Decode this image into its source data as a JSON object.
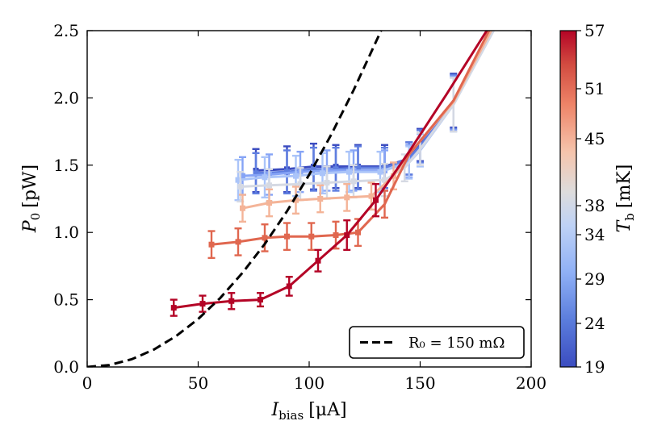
{
  "chart_data": {
    "type": "line",
    "xlabel_main": "I",
    "xlabel_sub": "bias",
    "xlabel_unit": "[μA]",
    "ylabel_main": "P",
    "ylabel_sub": "0",
    "ylabel_unit": "[pW]",
    "xlim": [
      0,
      200
    ],
    "ylim": [
      0,
      2.5
    ],
    "x_ticks": [
      "0",
      "50",
      "100",
      "150",
      "200"
    ],
    "y_ticks": [
      "0.0",
      "0.5",
      "1.0",
      "1.5",
      "2.0",
      "2.5"
    ],
    "colorbar": {
      "label_main": "T",
      "label_sub": "b",
      "label_unit": "[mK]",
      "range": [
        19,
        57
      ],
      "ticks": [
        "19",
        "24",
        "29",
        "34",
        "38",
        "45",
        "51",
        "57"
      ],
      "tick_values": [
        19,
        24,
        29,
        34,
        38,
        45,
        51,
        57
      ]
    },
    "legend": {
      "label": "R₀ = 150 mΩ",
      "position": "lower-right",
      "style": "dashed",
      "color": "#000000"
    },
    "reference_curve": {
      "name": "R₀ = 150 mΩ",
      "x": [
        0,
        10,
        20,
        30,
        40,
        50,
        60,
        70,
        80,
        90,
        100,
        110,
        120,
        130,
        132.4
      ],
      "y": [
        0,
        0.0143,
        0.057,
        0.129,
        0.229,
        0.357,
        0.514,
        0.7,
        0.914,
        1.157,
        1.429,
        1.729,
        2.057,
        2.414,
        2.5
      ]
    },
    "series": [
      {
        "temperature": 19,
        "color": "#3b4cc0",
        "x": [
          76,
          90,
          102,
          112,
          122,
          134,
          145,
          150,
          165,
          182
        ],
        "y": [
          1.46,
          1.47,
          1.49,
          1.49,
          1.49,
          1.49,
          1.55,
          1.65,
          1.98,
          2.5
        ],
        "err": [
          0.16,
          0.17,
          0.17,
          0.16,
          0.16,
          0.16,
          0.12,
          0.12,
          0.2,
          0
        ],
        "n_markers": 6
      },
      {
        "temperature": 24,
        "color": "#5f7ee0",
        "x": [
          76,
          90,
          102,
          112,
          122,
          134,
          145,
          150,
          165,
          182
        ],
        "y": [
          1.44,
          1.45,
          1.47,
          1.47,
          1.48,
          1.48,
          1.55,
          1.64,
          1.97,
          2.5
        ],
        "err": [
          0.15,
          0.16,
          0.16,
          0.16,
          0.16,
          0.15,
          0.12,
          0.12,
          0.2,
          0
        ],
        "n_markers": 6
      },
      {
        "temperature": 29,
        "color": "#86a4f6",
        "x": [
          70,
          82,
          96,
          108,
          120,
          134,
          145,
          150,
          165,
          183
        ],
        "y": [
          1.42,
          1.43,
          1.45,
          1.46,
          1.46,
          1.46,
          1.53,
          1.62,
          1.96,
          2.5
        ],
        "err": [
          0.14,
          0.15,
          0.15,
          0.15,
          0.15,
          0.15,
          0.12,
          0.12,
          0.2,
          0
        ],
        "n_markers": 6
      },
      {
        "temperature": 34,
        "color": "#aac4f9",
        "x": [
          68,
          80,
          94,
          106,
          118,
          132,
          145,
          150,
          165,
          183
        ],
        "y": [
          1.39,
          1.41,
          1.42,
          1.44,
          1.45,
          1.45,
          1.52,
          1.61,
          1.95,
          2.5
        ],
        "err": [
          0.15,
          0.15,
          0.15,
          0.15,
          0.15,
          0.15,
          0.12,
          0.12,
          0.2,
          0
        ],
        "n_markers": 6
      },
      {
        "temperature": 38,
        "color": "#d5d9e3",
        "x": [
          69,
          82,
          96,
          108,
          120,
          134,
          143,
          150,
          165,
          183
        ],
        "y": [
          1.34,
          1.35,
          1.36,
          1.37,
          1.38,
          1.39,
          1.48,
          1.62,
          1.95,
          2.5
        ],
        "err": [
          0.11,
          0.12,
          0.12,
          0.12,
          0.12,
          0.12,
          0.1,
          0.12,
          0.2,
          0
        ],
        "n_markers": 6
      },
      {
        "temperature": 45,
        "color": "#f4b498",
        "x": [
          70,
          82,
          94,
          105,
          117,
          128,
          138,
          146,
          165,
          182
        ],
        "y": [
          1.18,
          1.22,
          1.24,
          1.25,
          1.26,
          1.27,
          1.42,
          1.6,
          1.97,
          2.5
        ],
        "err": [
          0.1,
          0.1,
          0.1,
          0.1,
          0.1,
          0.1,
          0.1,
          0,
          0,
          0
        ],
        "n_markers": 7
      },
      {
        "temperature": 51,
        "color": "#e0674f",
        "x": [
          56,
          68,
          80,
          90,
          101,
          112,
          122,
          134,
          145,
          165,
          181
        ],
        "y": [
          0.91,
          0.93,
          0.96,
          0.97,
          0.97,
          0.98,
          1.0,
          1.21,
          1.58,
          1.98,
          2.5
        ],
        "err": [
          0.1,
          0.1,
          0.1,
          0.1,
          0.1,
          0.1,
          0.1,
          0.1,
          0,
          0,
          0
        ],
        "n_markers": 7
      },
      {
        "temperature": 57,
        "color": "#b40426",
        "x": [
          39,
          52,
          65,
          78,
          91,
          104,
          117,
          130,
          145,
          162,
          180
        ],
        "y": [
          0.44,
          0.47,
          0.49,
          0.5,
          0.6,
          0.79,
          0.98,
          1.24,
          1.6,
          2.03,
          2.5
        ],
        "err": [
          0.06,
          0.06,
          0.06,
          0.05,
          0.07,
          0.08,
          0.11,
          0.12,
          0,
          0,
          0
        ],
        "n_markers": 8
      }
    ]
  }
}
